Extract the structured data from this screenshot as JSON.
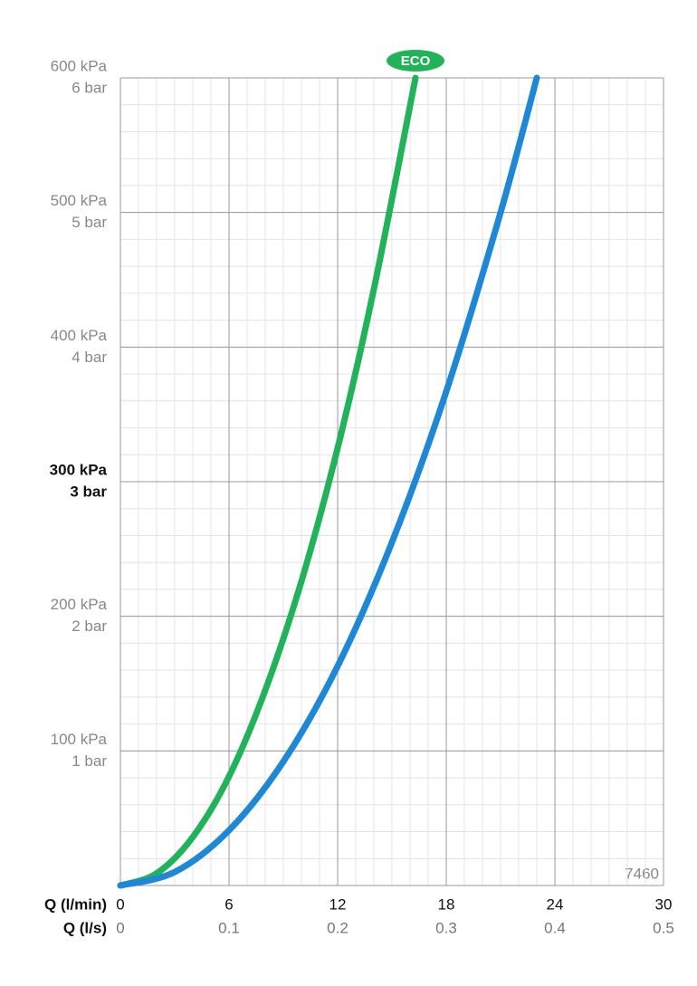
{
  "chart_data": {
    "type": "line",
    "x_label": "Q (l/min)",
    "x2_label": "Q (l/s)",
    "annotation": "7460",
    "xlim": [
      0,
      30
    ],
    "xticks": [
      0,
      6,
      12,
      18,
      24,
      30
    ],
    "x2lim": [
      0,
      0.5
    ],
    "x2ticks": [
      0,
      0.1,
      0.2,
      0.3,
      0.4,
      0.5
    ],
    "ylim": [
      0,
      600
    ],
    "yticks": [
      {
        "value": 100,
        "label": "100 kPa"
      },
      {
        "value": 200,
        "label": "200 kPa"
      },
      {
        "value": 300,
        "label": "300 kPa"
      },
      {
        "value": 400,
        "label": "400 kPa"
      },
      {
        "value": 500,
        "label": "500 kPa"
      },
      {
        "value": 600,
        "label": "600 kPa"
      }
    ],
    "y2lim": [
      0,
      6
    ],
    "y2ticks": [
      {
        "value": 1,
        "label": "1 bar"
      },
      {
        "value": 2,
        "label": "2 bar"
      },
      {
        "value": 3,
        "label": "3 bar"
      },
      {
        "value": 4,
        "label": "4 bar"
      },
      {
        "value": 5,
        "label": "5 bar"
      },
      {
        "value": 6,
        "label": "6 bar"
      }
    ],
    "highlight_ytick": 300,
    "grid": true,
    "minor_grid": true,
    "series": [
      {
        "name": "ECO",
        "color": "#22b35a",
        "x": [
          0,
          2,
          4,
          6,
          8,
          10,
          12,
          14,
          16.3
        ],
        "values": [
          0,
          9,
          36,
          81,
          145,
          226,
          325,
          443,
          600
        ]
      },
      {
        "color": "#1e88d6",
        "x": [
          0,
          3,
          6,
          9,
          12,
          15,
          18,
          21,
          23
        ],
        "values": [
          0,
          10,
          41,
          92,
          163,
          255,
          367,
          500,
          600
        ]
      }
    ]
  }
}
